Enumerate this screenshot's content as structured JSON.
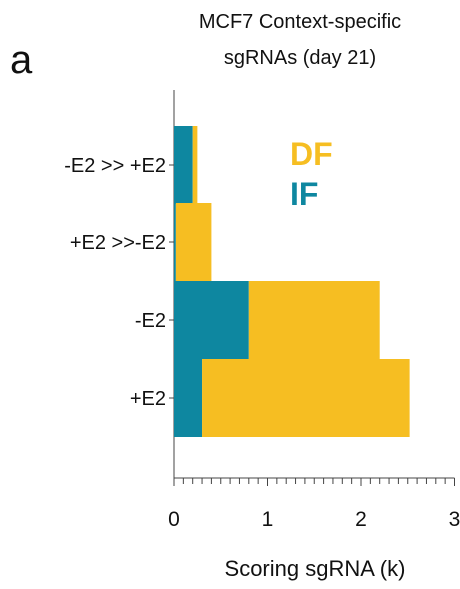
{
  "panel_label": "a",
  "chart_data": {
    "type": "bar",
    "orientation": "horizontal",
    "stacked": true,
    "title": [
      "MCF7 Context-specific",
      "sgRNAs (day 21)"
    ],
    "xlabel": "Scoring sgRNA (k)",
    "ylabel": "",
    "xlim": [
      0,
      3
    ],
    "xticks": [
      "0",
      "1",
      "2",
      "3"
    ],
    "categories": [
      "-E2 >> +E2",
      "+E2 >>-E2",
      "-E2",
      "+E2"
    ],
    "series": [
      {
        "name": "IF",
        "color": "#0e87a0",
        "values": [
          0.2,
          0.02,
          0.8,
          0.3
        ]
      },
      {
        "name": "DF",
        "color": "#f6be22",
        "values": [
          0.05,
          0.38,
          1.4,
          2.22
        ]
      }
    ],
    "legend_position": "top-right",
    "grid": false
  }
}
